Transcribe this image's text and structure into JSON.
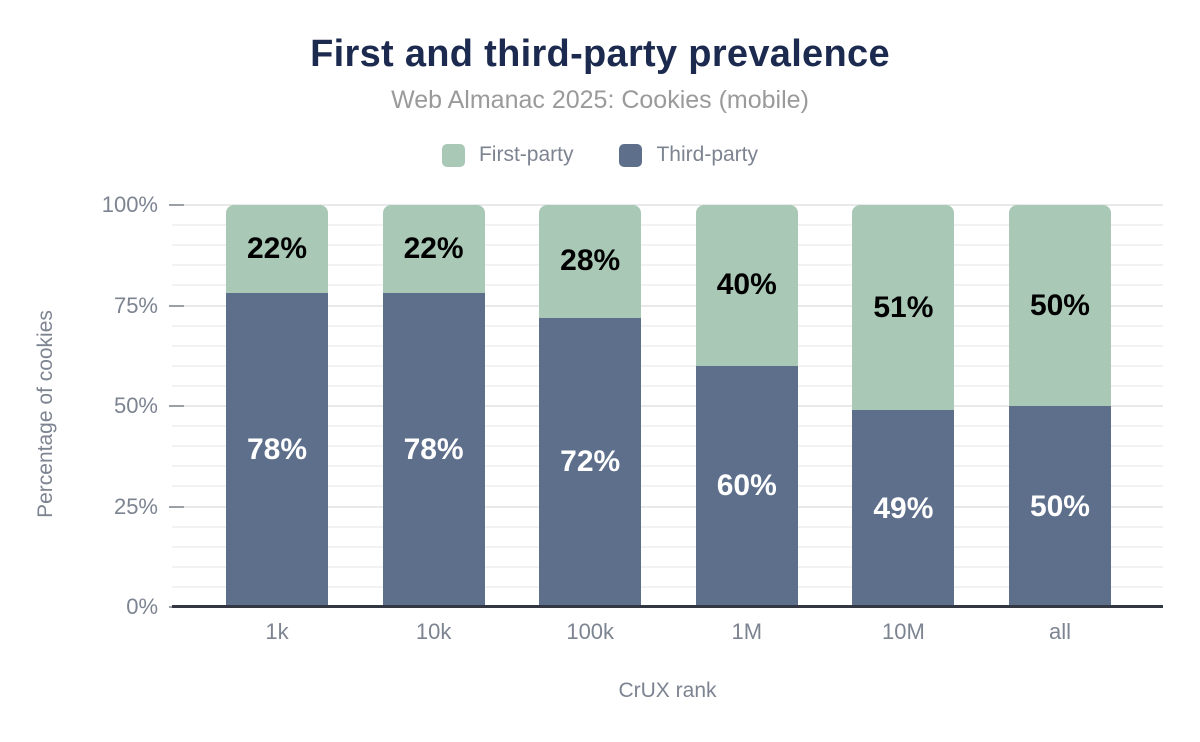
{
  "chart_data": {
    "type": "bar",
    "stacked": true,
    "title": "First and third-party prevalence",
    "subtitle": "Web Almanac 2025: Cookies (mobile)",
    "xlabel": "CrUX rank",
    "ylabel": "Percentage of cookies",
    "categories": [
      "1k",
      "10k",
      "100k",
      "1M",
      "10M",
      "all"
    ],
    "series": [
      {
        "name": "First-party",
        "color": "#a9c8b6",
        "label_color": "#000000",
        "values": [
          22,
          22,
          28,
          40,
          51,
          50
        ],
        "labels": [
          "22%",
          "22%",
          "28%",
          "40%",
          "51%",
          "50%"
        ]
      },
      {
        "name": "Third-party",
        "color": "#5e6f8c",
        "label_color": "#ffffff",
        "values": [
          78,
          78,
          72,
          60,
          49,
          50
        ],
        "labels": [
          "78%",
          "78%",
          "72%",
          "60%",
          "49%",
          "50%"
        ]
      }
    ],
    "y_ticks": [
      {
        "value": 0,
        "label": "0%"
      },
      {
        "value": 25,
        "label": "25%"
      },
      {
        "value": 50,
        "label": "50%"
      },
      {
        "value": 75,
        "label": "75%"
      },
      {
        "value": 100,
        "label": "100%"
      }
    ],
    "ylim": [
      0,
      100
    ],
    "grid": {
      "orientation": "horizontal",
      "minor_step": 5,
      "major_step": 25
    },
    "legend_position": "top",
    "colors": {
      "title": "#1b2a4e",
      "subtitle": "#9a9a9a",
      "axis_text": "#7d8491",
      "axis_line": "#323741",
      "tick_mark": "#9aa0a6",
      "gridline_minor": "#f2f2f2",
      "gridline_major": "#e9e9e9",
      "background": "#ffffff"
    }
  }
}
